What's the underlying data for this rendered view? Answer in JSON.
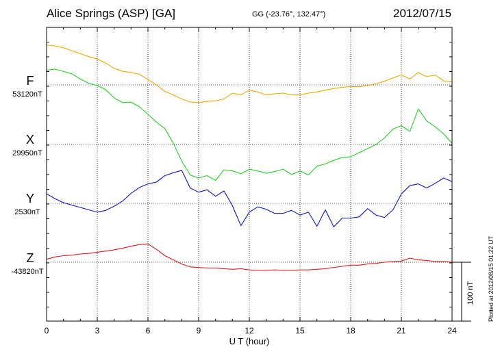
{
  "header": {
    "title": "Alice Springs (ASP)  [GA]",
    "coords": "GG (-23.76°, 132.47°)",
    "date": "2012/07/15"
  },
  "scale_bar_label": "100 nT",
  "plotted_note": "Plotted at 2012/08/15 01:22 UT",
  "chart_data": {
    "type": "line",
    "xlabel": "U T (hour)",
    "ylabel": "",
    "xlim": [
      0,
      24
    ],
    "xticks": [
      0,
      3,
      6,
      9,
      12,
      15,
      18,
      21,
      24
    ],
    "nT_per_gridline": 100,
    "grid": true,
    "series": [
      {
        "name": "F",
        "baseline_label": "53120nT",
        "baseline_nT": 53120,
        "color": "#f0a800",
        "x": [
          0,
          0.5,
          1,
          1.5,
          2,
          2.5,
          3,
          3.5,
          4,
          4.5,
          5,
          5.5,
          6,
          6.5,
          7,
          7.5,
          8,
          8.5,
          9,
          9.5,
          10,
          10.5,
          11,
          11.5,
          12,
          12.5,
          13,
          13.5,
          14,
          14.5,
          15,
          15.5,
          16,
          16.5,
          17,
          17.5,
          18,
          18.5,
          19,
          19.5,
          20,
          20.5,
          21,
          21.5,
          22,
          22.5,
          23,
          23.5,
          24
        ],
        "y": [
          68,
          66,
          63,
          58,
          53,
          48,
          44,
          37,
          28,
          23,
          21,
          18,
          9,
          0,
          -11,
          -17,
          -24,
          -29,
          -30,
          -28,
          -27,
          -24,
          -14,
          -17,
          -9,
          -12,
          -17,
          -15,
          -14,
          -17,
          -17,
          -14,
          -12,
          -9,
          -6,
          -4,
          -3,
          -3,
          -1,
          2,
          6,
          12,
          17,
          10,
          21,
          14,
          17,
          7,
          5
        ]
      },
      {
        "name": "X",
        "baseline_label": "29950nT",
        "baseline_nT": 29950,
        "color": "#20d020",
        "x": [
          0,
          0.5,
          1,
          1.5,
          2,
          2.5,
          3,
          3.5,
          4,
          4.5,
          5,
          5.5,
          6,
          6.5,
          7,
          7.5,
          8,
          8.5,
          9,
          9.5,
          10,
          10.5,
          11,
          11.5,
          12,
          12.5,
          13,
          13.5,
          14,
          14.5,
          15,
          15.5,
          16,
          16.5,
          17,
          17.5,
          18,
          18.5,
          19,
          19.5,
          20,
          20.5,
          21,
          21.5,
          22,
          22.5,
          23,
          23.5,
          24
        ],
        "y": [
          126,
          128,
          124,
          120,
          111,
          104,
          100,
          93,
          79,
          71,
          72,
          64,
          51,
          38,
          27,
          2,
          -28,
          -52,
          -57,
          -53,
          -61,
          -43,
          -45,
          -50,
          -42,
          -45,
          -49,
          -46,
          -42,
          -51,
          -45,
          -52,
          -37,
          -33,
          -27,
          -22,
          -21,
          -14,
          -7,
          0,
          11,
          26,
          32,
          22,
          60,
          40,
          30,
          18,
          2
        ]
      },
      {
        "name": "Y",
        "baseline_label": "2530nT",
        "baseline_nT": 2530,
        "color": "#1010cc",
        "x": [
          0,
          0.5,
          1,
          1.5,
          2,
          2.5,
          3,
          3.5,
          4,
          4.5,
          5,
          5.5,
          6,
          6.5,
          7,
          7.5,
          8,
          8.5,
          9,
          9.5,
          10,
          10.5,
          11,
          11.5,
          12,
          12.5,
          13,
          13.5,
          14,
          14.5,
          15,
          15.5,
          16,
          16.5,
          17,
          17.5,
          18,
          18.5,
          19,
          19.5,
          20,
          20.5,
          21,
          21.5,
          22,
          22.5,
          23,
          23.5,
          24
        ],
        "y": [
          16,
          8,
          1,
          -3,
          -7,
          -11,
          -15,
          -12,
          -5,
          4,
          17,
          27,
          33,
          36,
          47,
          52,
          56,
          26,
          19,
          23,
          12,
          21,
          -4,
          -38,
          -15,
          -6,
          -10,
          -17,
          -17,
          -12,
          -20,
          -15,
          -39,
          -11,
          -40,
          -25,
          -25,
          -23,
          -9,
          -20,
          -24,
          -11,
          16,
          30,
          33,
          26,
          34,
          43,
          37
        ]
      },
      {
        "name": "Z",
        "baseline_label": "-43820nT",
        "baseline_nT": -43820,
        "color": "#e01818",
        "x": [
          0,
          0.5,
          1,
          1.5,
          2,
          2.5,
          3,
          3.5,
          4,
          4.5,
          5,
          5.5,
          6,
          6.5,
          7,
          7.5,
          8,
          8.5,
          9,
          9.5,
          10,
          10.5,
          11,
          11.5,
          12,
          12.5,
          13,
          13.5,
          14,
          14.5,
          15,
          15.5,
          16,
          16.5,
          17,
          17.5,
          18,
          18.5,
          19,
          19.5,
          20,
          20.5,
          21,
          21.5,
          22,
          22.5,
          23,
          23.5,
          24
        ],
        "y": [
          5,
          9,
          11,
          12,
          14,
          15,
          17,
          19,
          21,
          24,
          27,
          30,
          31,
          22,
          11,
          4,
          -3,
          -8,
          -9,
          -10,
          -10,
          -11,
          -12,
          -11,
          -13,
          -14,
          -14,
          -13,
          -14,
          -14,
          -13,
          -13,
          -12,
          -11,
          -9,
          -7,
          -5,
          -5,
          -3,
          -2,
          0,
          1,
          2,
          7,
          4,
          3,
          1,
          1,
          0
        ]
      }
    ]
  }
}
